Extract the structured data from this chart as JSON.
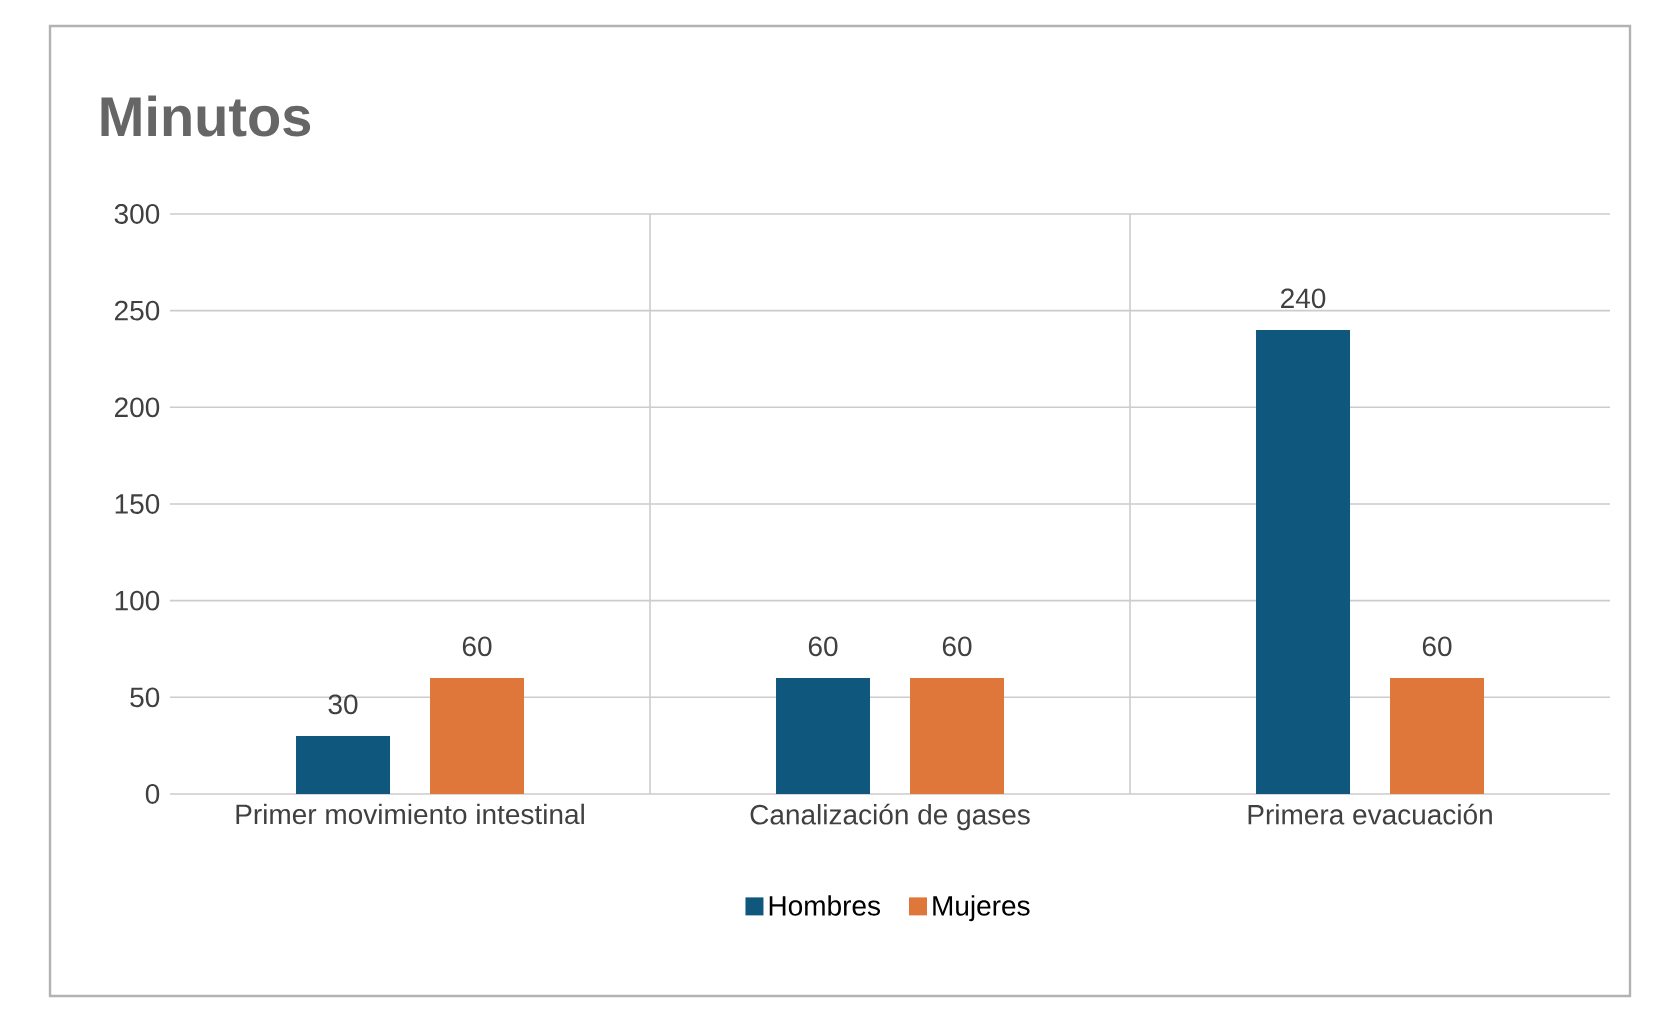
{
  "chart_data": {
    "type": "bar",
    "title": "Minutos",
    "categories": [
      "Primer movimiento intestinal",
      "Canalización de gases",
      "Primera evacuación"
    ],
    "series": [
      {
        "name": "Hombres",
        "color": "#10577e",
        "values": [
          30,
          60,
          240
        ]
      },
      {
        "name": "Mujeres",
        "color": "#e0773a",
        "values": [
          60,
          60,
          60
        ]
      }
    ],
    "ylim": [
      0,
      300
    ],
    "yticks": [
      0,
      50,
      100,
      150,
      200,
      250,
      300
    ],
    "grid": true,
    "legend": "bottom",
    "data_labels": true
  }
}
